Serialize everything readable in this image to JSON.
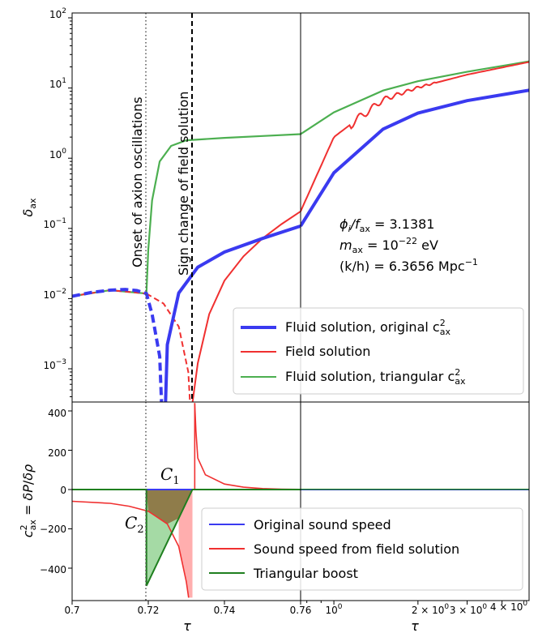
{
  "chart_data": [
    {
      "type": "line",
      "panel": "top-left",
      "xlabel": "",
      "ylabel": "δ_ax",
      "yscale": "log",
      "ylim": [
        0.0003,
        100
      ],
      "xlim": [
        0.7,
        0.76
      ],
      "y_tick_labels": [
        "10^-3",
        "10^-2",
        "10^-1",
        "10^0",
        "10^1",
        "10^2"
      ],
      "vertical_lines": [
        {
          "x": 0.7195,
          "style": "dotted",
          "color": "#555555",
          "label": "Onset of axion oscillations"
        },
        {
          "x": 0.7315,
          "style": "dashed",
          "color": "#000000",
          "label": "Sign change of field solution"
        }
      ],
      "series": [
        {
          "name": "Fluid solution, original c²ax",
          "color": "#3a3af0",
          "points": [
            [
              0.7,
              0.0108
            ],
            [
              0.705,
              0.0122
            ],
            [
              0.71,
              0.0132
            ],
            [
              0.714,
              0.0135
            ],
            [
              0.717,
              0.013
            ],
            [
              0.7195,
              0.0118
            ],
            [
              0.721,
              0.006
            ],
            [
              0.723,
              0.0015
            ],
            [
              0.7235,
              0.0003
            ],
            [
              0.7245,
              0.0003
            ],
            [
              0.725,
              0.0022
            ],
            [
              0.728,
              0.012
            ],
            [
              0.733,
              0.028
            ],
            [
              0.74,
              0.046
            ],
            [
              0.75,
              0.072
            ],
            [
              0.76,
              0.108
            ]
          ]
        },
        {
          "name": "Field solution",
          "color": "#f03030",
          "points": [
            [
              0.7,
              0.0108
            ],
            [
              0.71,
              0.0132
            ],
            [
              0.7195,
              0.0118
            ],
            [
              0.724,
              0.0085
            ],
            [
              0.728,
              0.004
            ],
            [
              0.7305,
              0.0009
            ],
            [
              0.731,
              0.0003
            ],
            [
              0.7315,
              0.0003
            ],
            [
              0.733,
              0.0012
            ],
            [
              0.736,
              0.006
            ],
            [
              0.74,
              0.018
            ],
            [
              0.745,
              0.04
            ],
            [
              0.75,
              0.072
            ],
            [
              0.755,
              0.115
            ],
            [
              0.76,
              0.175
            ]
          ]
        },
        {
          "name": "Fluid solution, triangular c²ax",
          "color": "#4caf50",
          "points": [
            [
              0.7,
              0.0108
            ],
            [
              0.71,
              0.0132
            ],
            [
              0.7195,
              0.0118
            ],
            [
              0.72,
              0.05
            ],
            [
              0.721,
              0.25
            ],
            [
              0.723,
              0.9
            ],
            [
              0.726,
              1.5
            ],
            [
              0.73,
              1.8
            ],
            [
              0.74,
              1.95
            ],
            [
              0.75,
              2.07
            ],
            [
              0.76,
              2.2
            ]
          ]
        }
      ]
    },
    {
      "type": "line",
      "panel": "top-right",
      "xscale": "log",
      "yscale": "log",
      "ylim": [
        0.0003,
        100
      ],
      "series": [
        {
          "name": "Fluid solution, original c²ax",
          "color": "#3a3af0",
          "points": [
            [
              0.76,
              0.108
            ],
            [
              1.0,
              0.62
            ],
            [
              1.5,
              2.6
            ],
            [
              2.0,
              4.4
            ],
            [
              3.0,
              6.6
            ],
            [
              5.0,
              9.3
            ]
          ]
        },
        {
          "name": "Field solution",
          "color": "#f03030",
          "points": [
            [
              0.76,
              0.175
            ],
            [
              1.0,
              2.0
            ],
            [
              1.5,
              6.8
            ],
            [
              2.0,
              10.2
            ],
            [
              3.0,
              15.5
            ],
            [
              5.0,
              23.5
            ]
          ]
        },
        {
          "name": "Fluid solution, triangular c²ax",
          "color": "#4caf50",
          "points": [
            [
              0.76,
              2.2
            ],
            [
              1.0,
              4.5
            ],
            [
              1.5,
              9.2
            ],
            [
              2.0,
              12.5
            ],
            [
              3.0,
              17.0
            ],
            [
              5.0,
              24.0
            ]
          ]
        }
      ],
      "annotations": [
        "ϕi/fax = 3.1381",
        "max = 10^-22 eV",
        "(k/h) = 6.3656 Mpc^-1"
      ]
    },
    {
      "type": "line",
      "panel": "bottom-left",
      "xlabel": "τ",
      "ylabel": "c²ax = δP/δρ",
      "xlim": [
        0.7,
        0.76
      ],
      "ylim": [
        -550,
        440
      ],
      "x_tick_labels": [
        "0.7",
        "0.72",
        "0.74",
        "0.76"
      ],
      "y_tick_labels": [
        "−400",
        "−200",
        "0",
        "200",
        "400"
      ],
      "series": [
        {
          "name": "Original sound speed",
          "color": "#3a3af0",
          "points": [
            [
              0.7,
              0
            ],
            [
              0.76,
              0
            ]
          ]
        },
        {
          "name": "Sound speed from field solution",
          "color": "#f03030",
          "points": [
            [
              0.7,
              -60
            ],
            [
              0.71,
              -70
            ],
            [
              0.715,
              -85
            ],
            [
              0.72,
              -110
            ],
            [
              0.725,
              -175
            ],
            [
              0.728,
              -290
            ],
            [
              0.73,
              -470
            ],
            [
              0.7306,
              -550
            ],
            [
              0.7322,
              440
            ],
            [
              0.7325,
              300
            ],
            [
              0.733,
              160
            ],
            [
              0.735,
              75
            ],
            [
              0.74,
              28
            ],
            [
              0.745,
              12
            ],
            [
              0.75,
              5
            ],
            [
              0.755,
              2
            ],
            [
              0.76,
              1
            ]
          ]
        },
        {
          "name": "Triangular boost",
          "color": "#1f7f1f",
          "points": [
            [
              0.7,
              0
            ],
            [
              0.7195,
              0
            ],
            [
              0.7195,
              -490
            ],
            [
              0.7316,
              0
            ],
            [
              0.76,
              0
            ]
          ]
        }
      ],
      "regions": [
        "C₁",
        "C₂"
      ]
    },
    {
      "type": "line",
      "panel": "bottom-right",
      "xlabel": "τ",
      "xscale": "log",
      "x_tick_labels": [
        "10^0",
        "2 × 10^0",
        "3 × 10^0",
        "4 × 10^0"
      ],
      "series": [
        {
          "name": "Sound speed from field solution",
          "color": "#f03030",
          "points": [
            [
              0.76,
              1
            ],
            [
              1.0,
              0.5
            ],
            [
              5.0,
              0.1
            ]
          ]
        }
      ]
    }
  ],
  "legend_top": [
    {
      "label": "Fluid solution, original c",
      "sup": "2",
      "sub": "ax"
    },
    {
      "label": "Field solution"
    },
    {
      "label": "Fluid solution, triangular c",
      "sup": "2",
      "sub": "ax"
    }
  ],
  "legend_bottom": [
    {
      "label": "Original sound speed"
    },
    {
      "label": "Sound speed from field solution"
    },
    {
      "label": "Triangular boost"
    }
  ],
  "texts": {
    "vline1": "Onset of axion oscillations",
    "vline2": "Sign change of field solution",
    "c1": "C",
    "c1sub": "1",
    "c2": "C",
    "c2sub": "2",
    "xlabel_left": "τ",
    "xlabel_right": "τ",
    "annot_phi": "ϕ",
    "annot_phi_sub": "i",
    "annot_phi_rest": "/f",
    "annot_phi_sub2": "ax",
    "annot_phi_val": " = 3.1381",
    "annot_m": "m",
    "annot_m_sub": "ax",
    "annot_m_val": " = 10",
    "annot_m_exp": "−22",
    "annot_m_unit": " eV",
    "annot_k": "(k/h) = 6.3656 Mpc",
    "annot_k_exp": "−1"
  },
  "x_ticks_left": [
    "0.7",
    "0.72",
    "0.74",
    "0.76"
  ],
  "x_ticks_right": [
    {
      "base": "10",
      "exp": "0"
    },
    {
      "base": "2 × 10",
      "exp": "0"
    },
    {
      "base": "3 × 10",
      "exp": "0"
    },
    {
      "base": "4 × 10",
      "exp": "0"
    }
  ],
  "y_ticks_top": [
    {
      "base": "10",
      "exp": "−3"
    },
    {
      "base": "10",
      "exp": "−2"
    },
    {
      "base": "10",
      "exp": "−1"
    },
    {
      "base": "10",
      "exp": "0"
    },
    {
      "base": "10",
      "exp": "1"
    },
    {
      "base": "10",
      "exp": "2"
    }
  ],
  "y_ticks_bottom": [
    "−400",
    "−200",
    "0",
    "200",
    "400"
  ],
  "colors": {
    "blue": "#3a3af0",
    "red": "#f03030",
    "green_light": "#4caf50",
    "green_dark": "#1f7f1f",
    "brown_fill": "#8b6b3a",
    "green_fill": "#8fd18f",
    "pink_fill": "#ff9a9a"
  }
}
